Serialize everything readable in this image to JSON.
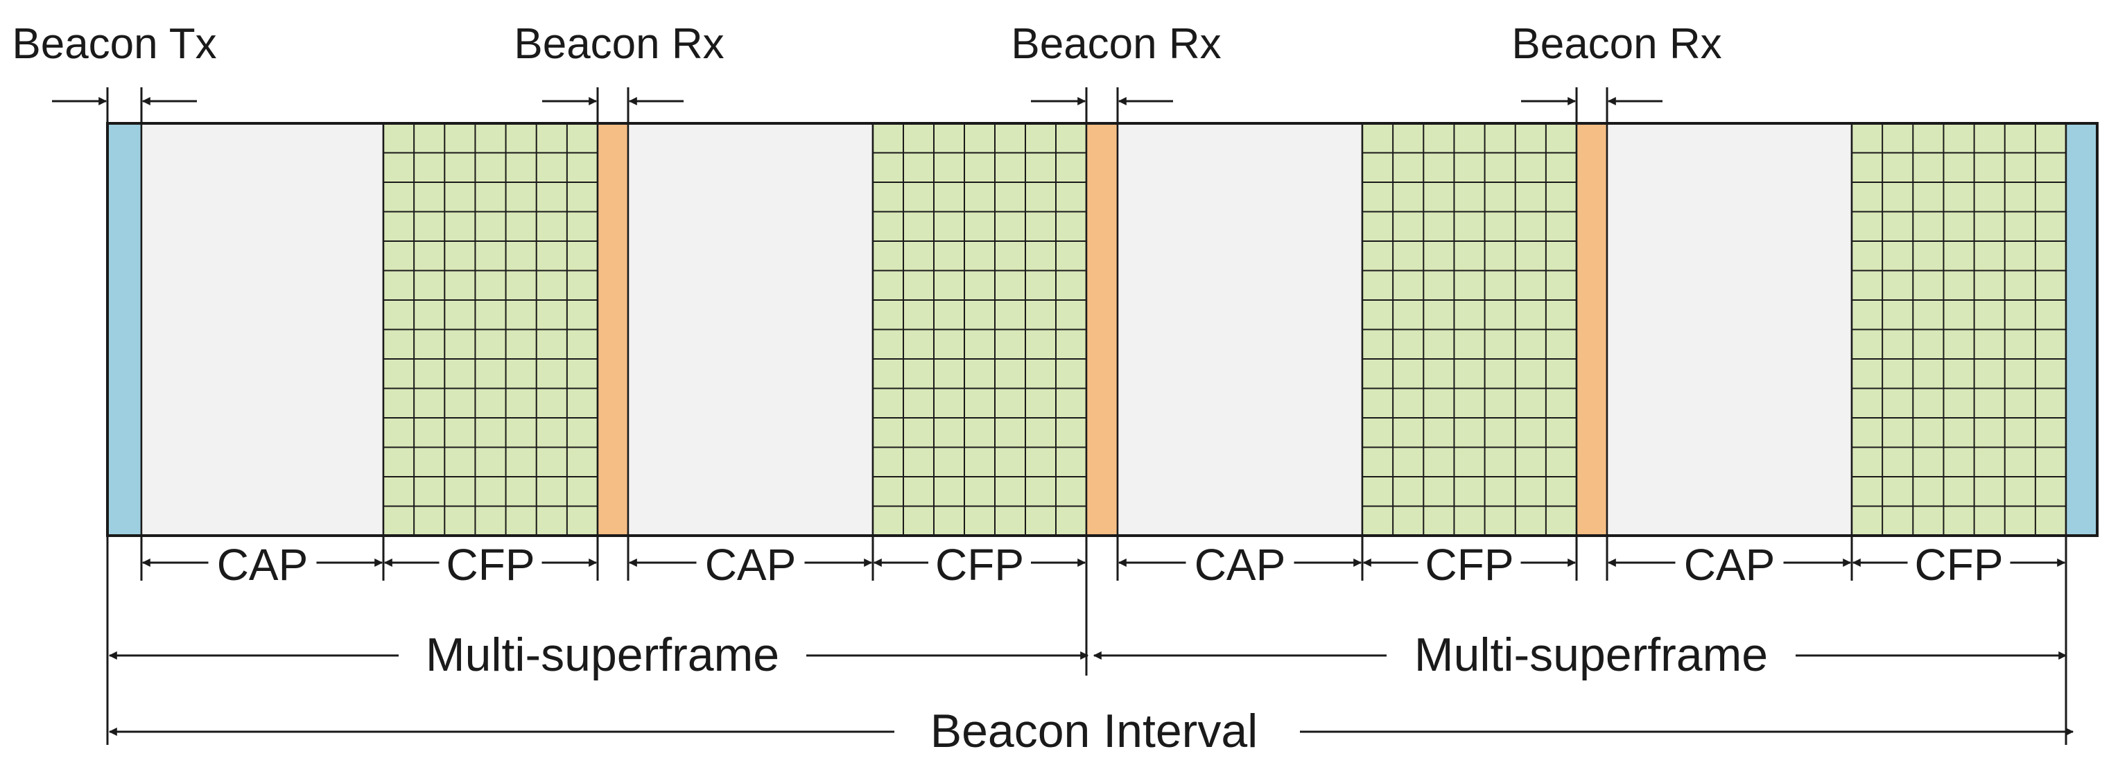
{
  "labels": {
    "beacon_tx": "Beacon Tx",
    "beacon_rx": "Beacon Rx",
    "cap": "CAP",
    "cfp": "CFP",
    "multi_superframe": "Multi-superframe",
    "beacon_interval": "Beacon Interval"
  },
  "colors": {
    "beacon_tx": "#9ECFE0",
    "beacon_rx": "#F5BE85",
    "cap": "#F2F2F2",
    "cfp": "#D9E8B8",
    "line": "#1a1a1a"
  },
  "layout_sequence": [
    "beacon_tx",
    "cap",
    "cfp",
    "beacon_rx",
    "cap",
    "cfp",
    "beacon_rx",
    "cap",
    "cfp",
    "beacon_rx",
    "cap",
    "cfp",
    "beacon_tx"
  ],
  "cfp_grid": {
    "columns": 7,
    "rows": 14
  }
}
